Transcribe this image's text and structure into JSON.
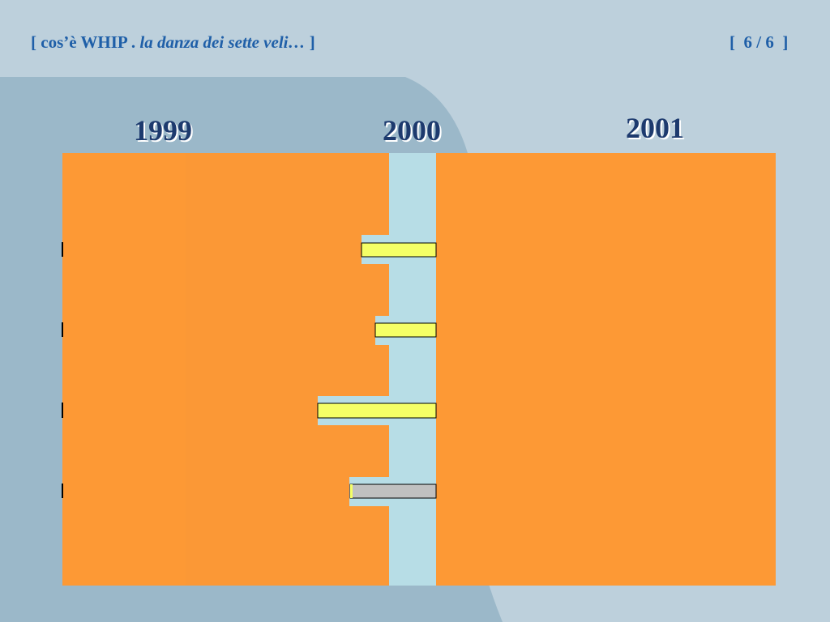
{
  "header": {
    "title": [
      "[ cos’è WHIP .",
      "la danza dei sette veli…",
      "]"
    ],
    "page": "[  6 / 6  ]"
  },
  "years": [
    "1999",
    "2000",
    "2001"
  ]
}
